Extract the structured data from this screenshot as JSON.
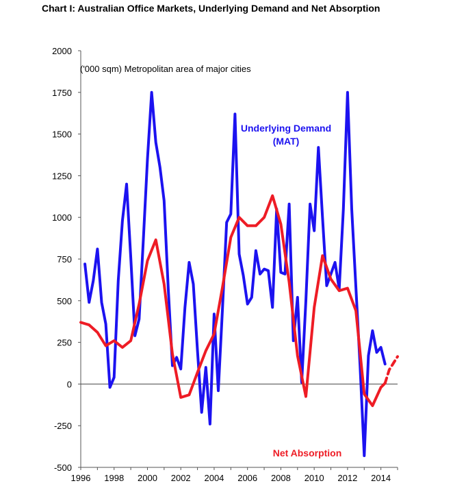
{
  "chart_data": {
    "type": "line",
    "title": "Chart I: Australian Office Markets, Underlying Demand and Net Absorption",
    "unit_note": "('000 sqm) Metropolitan area of major cities",
    "xlim": [
      1996,
      2015
    ],
    "ylim": [
      -500,
      2000
    ],
    "grid": false,
    "x_ticks": [
      1996,
      1998,
      2000,
      2002,
      2004,
      2006,
      2008,
      2010,
      2012,
      2014
    ],
    "y_ticks": [
      2000,
      1750,
      1500,
      1250,
      1000,
      750,
      500,
      250,
      0,
      -250,
      -500
    ],
    "colors": {
      "underlying": "#1c12f0",
      "net": "#ee1c25",
      "axis": "#555555",
      "zero_line": "#444444"
    },
    "annotations": [
      {
        "series": "underlying",
        "lines": [
          "Underlying Demand",
          "(MAT)"
        ],
        "color": "#1c12f0"
      },
      {
        "series": "net",
        "lines": [
          "Net Absorption"
        ],
        "color": "#ee1c25"
      }
    ],
    "series": [
      {
        "key": "underlying",
        "points": [
          [
            1996.25,
            720
          ],
          [
            1996.5,
            490
          ],
          [
            1996.75,
            620
          ],
          [
            1997.0,
            810
          ],
          [
            1997.25,
            490
          ],
          [
            1997.5,
            360
          ],
          [
            1997.75,
            -20
          ],
          [
            1998.0,
            40
          ],
          [
            1998.25,
            620
          ],
          [
            1998.5,
            980
          ],
          [
            1998.75,
            1200
          ],
          [
            1999.0,
            760
          ],
          [
            1999.25,
            290
          ],
          [
            1999.5,
            390
          ],
          [
            1999.75,
            860
          ],
          [
            2000.0,
            1350
          ],
          [
            2000.25,
            1750
          ],
          [
            2000.5,
            1450
          ],
          [
            2000.75,
            1300
          ],
          [
            2001.0,
            1100
          ],
          [
            2001.25,
            570
          ],
          [
            2001.5,
            110
          ],
          [
            2001.75,
            160
          ],
          [
            2002.0,
            90
          ],
          [
            2002.25,
            460
          ],
          [
            2002.5,
            730
          ],
          [
            2002.75,
            600
          ],
          [
            2003.0,
            200
          ],
          [
            2003.25,
            -170
          ],
          [
            2003.5,
            100
          ],
          [
            2003.75,
            -240
          ],
          [
            2004.0,
            420
          ],
          [
            2004.25,
            -40
          ],
          [
            2004.5,
            450
          ],
          [
            2004.75,
            970
          ],
          [
            2005.0,
            1020
          ],
          [
            2005.25,
            1620
          ],
          [
            2005.5,
            780
          ],
          [
            2005.75,
            650
          ],
          [
            2006.0,
            480
          ],
          [
            2006.25,
            520
          ],
          [
            2006.5,
            800
          ],
          [
            2006.75,
            660
          ],
          [
            2007.0,
            690
          ],
          [
            2007.25,
            680
          ],
          [
            2007.5,
            460
          ],
          [
            2007.75,
            1050
          ],
          [
            2008.0,
            670
          ],
          [
            2008.25,
            660
          ],
          [
            2008.5,
            1080
          ],
          [
            2008.75,
            260
          ],
          [
            2009.0,
            520
          ],
          [
            2009.25,
            10
          ],
          [
            2009.5,
            500
          ],
          [
            2009.75,
            1080
          ],
          [
            2010.0,
            920
          ],
          [
            2010.25,
            1420
          ],
          [
            2010.5,
            1000
          ],
          [
            2010.75,
            590
          ],
          [
            2011.0,
            660
          ],
          [
            2011.25,
            730
          ],
          [
            2011.5,
            570
          ],
          [
            2011.75,
            1050
          ],
          [
            2012.0,
            1750
          ],
          [
            2012.25,
            1050
          ],
          [
            2012.5,
            580
          ],
          [
            2012.75,
            110
          ],
          [
            2013.0,
            -430
          ],
          [
            2013.25,
            170
          ],
          [
            2013.5,
            320
          ],
          [
            2013.75,
            190
          ],
          [
            2014.0,
            220
          ],
          [
            2014.25,
            120
          ]
        ]
      },
      {
        "key": "net",
        "points": [
          [
            1996.0,
            370
          ],
          [
            1996.5,
            355
          ],
          [
            1997.0,
            310
          ],
          [
            1997.5,
            230
          ],
          [
            1998.0,
            260
          ],
          [
            1998.5,
            220
          ],
          [
            1999.0,
            260
          ],
          [
            1999.5,
            480
          ],
          [
            2000.0,
            740
          ],
          [
            2000.5,
            865
          ],
          [
            2001.0,
            600
          ],
          [
            2001.5,
            180
          ],
          [
            2002.0,
            -80
          ],
          [
            2002.5,
            -65
          ],
          [
            2003.0,
            70
          ],
          [
            2003.5,
            200
          ],
          [
            2004.0,
            300
          ],
          [
            2004.5,
            580
          ],
          [
            2005.0,
            880
          ],
          [
            2005.5,
            1000
          ],
          [
            2006.0,
            950
          ],
          [
            2006.5,
            950
          ],
          [
            2007.0,
            1000
          ],
          [
            2007.5,
            1130
          ],
          [
            2008.0,
            960
          ],
          [
            2008.5,
            610
          ],
          [
            2009.0,
            170
          ],
          [
            2009.5,
            -75
          ],
          [
            2010.0,
            460
          ],
          [
            2010.5,
            770
          ],
          [
            2011.0,
            630
          ],
          [
            2011.5,
            560
          ],
          [
            2012.0,
            575
          ],
          [
            2012.5,
            440
          ],
          [
            2013.0,
            -60
          ],
          [
            2013.5,
            -130
          ],
          [
            2014.0,
            -20
          ],
          [
            2014.25,
            5
          ]
        ]
      },
      {
        "key": "net_forecast",
        "points": [
          [
            2014.25,
            5
          ],
          [
            2014.5,
            85
          ],
          [
            2014.75,
            125
          ],
          [
            2015.0,
            165
          ]
        ]
      }
    ]
  }
}
